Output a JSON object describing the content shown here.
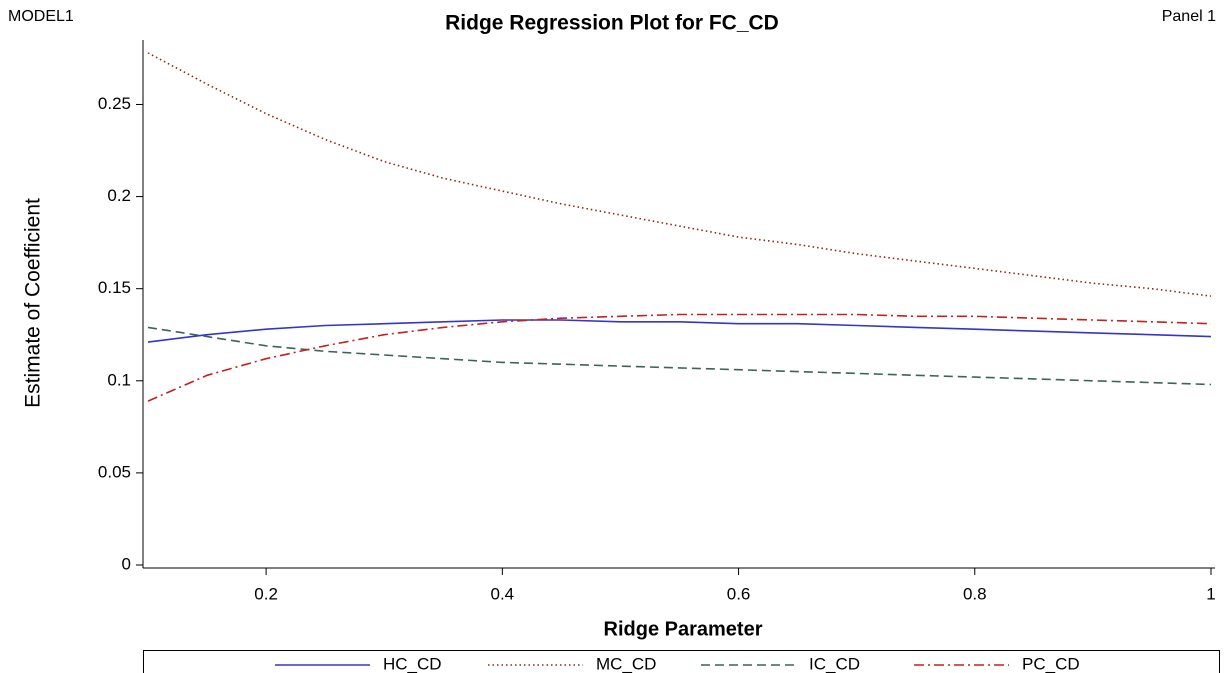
{
  "chart_data": {
    "type": "line",
    "header_left": "MODEL1",
    "header_right": "Panel 1",
    "title": "Ridge Regression Plot  for FC_CD",
    "x_label": "Ridge Parameter",
    "y_label": "Estimate of Coefficient",
    "x": [
      0.1,
      0.15,
      0.2,
      0.25,
      0.3,
      0.35,
      0.4,
      0.45,
      0.5,
      0.55,
      0.6,
      0.65,
      0.7,
      0.75,
      0.8,
      0.85,
      0.9,
      0.95,
      1
    ],
    "series": [
      {
        "name": "HC_CD",
        "color": "#3535c8",
        "dash": "solid",
        "values": [
          0.121,
          0.125,
          0.128,
          0.13,
          0.131,
          0.132,
          0.133,
          0.133,
          0.132,
          0.132,
          0.131,
          0.131,
          0.13,
          0.129,
          0.128,
          0.127,
          0.126,
          0.125,
          0.124
        ]
      },
      {
        "name": "MC_CD",
        "color": "#8b2a10",
        "dash": "dotted",
        "values": [
          0.278,
          0.261,
          0.245,
          0.231,
          0.219,
          0.21,
          0.203,
          0.196,
          0.19,
          0.184,
          0.178,
          0.174,
          0.169,
          0.165,
          0.161,
          0.157,
          0.153,
          0.15,
          0.146
        ]
      },
      {
        "name": "IC_CD",
        "color": "#3f6455",
        "dash": "dashed",
        "values": [
          0.129,
          0.124,
          0.119,
          0.116,
          0.114,
          0.112,
          0.11,
          0.109,
          0.108,
          0.107,
          0.106,
          0.105,
          0.104,
          0.103,
          0.102,
          0.101,
          0.1,
          0.099,
          0.098
        ]
      },
      {
        "name": "PC_CD",
        "color": "#c42020",
        "dash": "dashdot",
        "values": [
          0.089,
          0.103,
          0.112,
          0.119,
          0.125,
          0.129,
          0.132,
          0.134,
          0.135,
          0.136,
          0.136,
          0.136,
          0.136,
          0.135,
          0.135,
          0.134,
          0.133,
          0.132,
          0.131
        ]
      }
    ],
    "xlim": [
      0.1,
      1
    ],
    "ylim": [
      0,
      0.285
    ],
    "xticks": [
      0.2,
      0.4,
      0.6,
      0.8,
      1
    ],
    "yticks": [
      0,
      0.05,
      0.1,
      0.15,
      0.2,
      0.25
    ],
    "grid": false,
    "legend": "bottom"
  }
}
